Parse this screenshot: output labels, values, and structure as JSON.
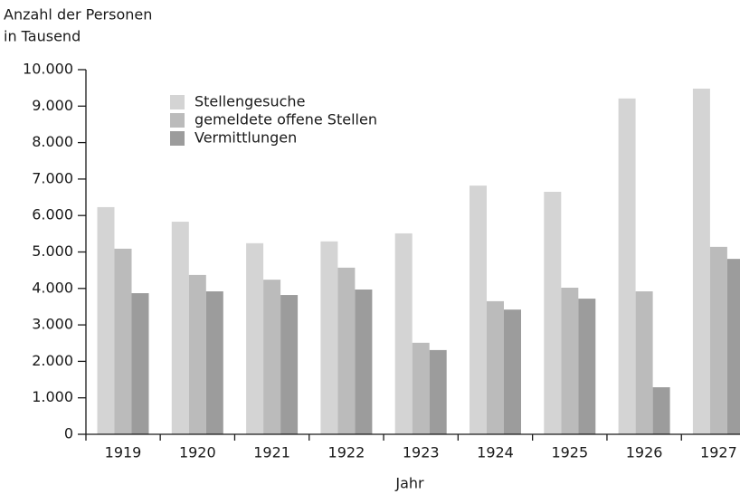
{
  "chart_data": {
    "type": "bar",
    "ylabel": [
      "Anzahl der Personen",
      "in Tausend"
    ],
    "xlabel": "Jahr",
    "categories": [
      "1919",
      "1920",
      "1921",
      "1922",
      "1923",
      "1924",
      "1925",
      "1926",
      "1927"
    ],
    "series": [
      {
        "name": "Stellengesuche",
        "color": "#d4d4d4",
        "values": [
          6230,
          5830,
          5240,
          5290,
          5510,
          6820,
          6650,
          9210,
          9480
        ]
      },
      {
        "name": "gemeldete offene Stellen",
        "color": "#bbbbbb",
        "values": [
          5090,
          4370,
          4240,
          4570,
          2510,
          3650,
          4020,
          3920,
          5140
        ]
      },
      {
        "name": "Vermittlungen",
        "color": "#9c9c9c",
        "values": [
          3870,
          3920,
          3820,
          3970,
          2310,
          3420,
          3720,
          1290,
          4810
        ]
      }
    ],
    "ylim": [
      0,
      10000
    ],
    "yticks": [
      0,
      {
        "value": 1000,
        "label": "1.000"
      },
      {
        "value": 2000,
        "label": "2.000"
      },
      {
        "value": 3000,
        "label": "3.000"
      },
      {
        "value": 4000,
        "label": "4.000"
      },
      {
        "value": 5000,
        "label": "5.000"
      },
      {
        "value": 6000,
        "label": "6.000"
      },
      {
        "value": 7000,
        "label": "7.000"
      },
      {
        "value": 8000,
        "label": "8.000"
      },
      {
        "value": 9000,
        "label": "9.000"
      },
      {
        "value": 10000,
        "label": "10.000"
      }
    ],
    "grid": false,
    "legend": "upper left"
  }
}
